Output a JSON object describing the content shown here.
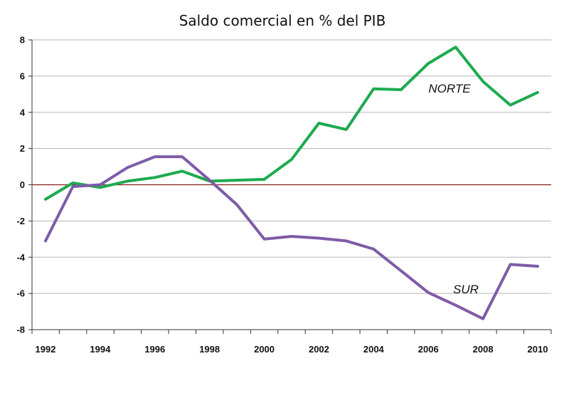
{
  "chart_data": {
    "type": "line",
    "title": "Saldo comercial en % del PIB",
    "xlabel": "",
    "ylabel": "",
    "x": [
      1992,
      1993,
      1994,
      1995,
      1996,
      1997,
      1998,
      1999,
      2000,
      2001,
      2002,
      2003,
      2004,
      2005,
      2006,
      2007,
      2008,
      2009,
      2010
    ],
    "x_ticks": [
      "1992",
      "1994",
      "1996",
      "1998",
      "2000",
      "2002",
      "2004",
      "2006",
      "2008",
      "2010"
    ],
    "y_ticks": [
      "8",
      "6",
      "4",
      "2",
      "0",
      "-2",
      "-4",
      "-6",
      "-8"
    ],
    "ylim": [
      -8,
      8
    ],
    "grid": true,
    "zero_line_color": "#8B1A1A",
    "series": [
      {
        "name": "NORTE",
        "color": "#1DAA4E",
        "values": [
          -0.8,
          0.1,
          -0.15,
          0.2,
          0.4,
          0.75,
          0.2,
          0.25,
          0.3,
          1.4,
          3.4,
          3.05,
          5.3,
          5.25,
          6.7,
          7.6,
          5.7,
          4.4,
          5.1
        ]
      },
      {
        "name": "SUR",
        "color": "#7E5BA7",
        "values": [
          -3.1,
          -0.1,
          0.0,
          0.95,
          1.55,
          1.55,
          0.25,
          -1.1,
          -3.0,
          -2.85,
          -2.95,
          -3.1,
          -3.55,
          -4.75,
          -5.95,
          -6.65,
          -7.4,
          -4.4,
          -4.5
        ]
      }
    ]
  }
}
